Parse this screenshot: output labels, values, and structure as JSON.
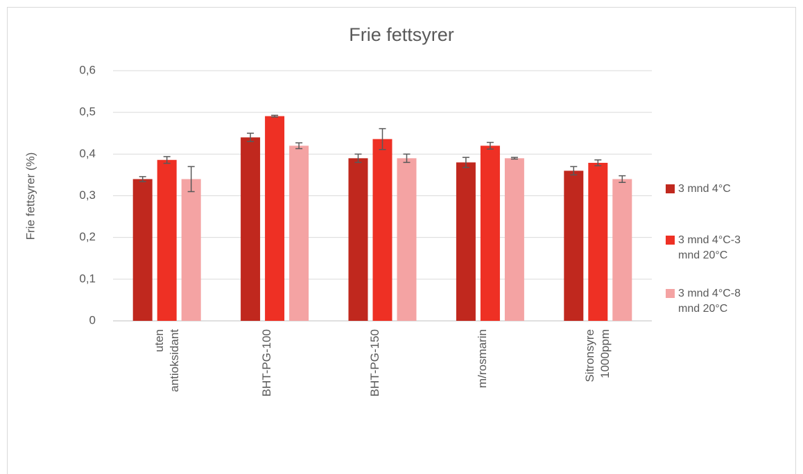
{
  "chart_data": {
    "type": "bar",
    "title": "Frie fettsyrer",
    "y_label": "Frie fettsyrer (%)",
    "categories": [
      "uten antioksidant",
      "BHT-PG-100",
      "BHT-PG-150",
      "m/rosmarin",
      "Sitronsyre 1000ppm"
    ],
    "series": [
      {
        "name": "3 mnd 4°C",
        "color": "#c0281e",
        "values": [
          0.34,
          0.44,
          0.39,
          0.38,
          0.36
        ],
        "errors": [
          0.006,
          0.01,
          0.01,
          0.012,
          0.01
        ]
      },
      {
        "name": "3 mnd 4°C-3 mnd 20°C",
        "color": "#ee3024",
        "values": [
          0.386,
          0.491,
          0.436,
          0.42,
          0.379
        ],
        "errors": [
          0.008,
          0.002,
          0.025,
          0.008,
          0.007
        ]
      },
      {
        "name": "3 mnd 4°C-8 mnd 20°C",
        "color": "#f4a3a3",
        "values": [
          0.34,
          0.42,
          0.39,
          0.39,
          0.34
        ],
        "errors": [
          0.03,
          0.007,
          0.01,
          0.002,
          0.008
        ]
      }
    ],
    "ylim": [
      0,
      0.6
    ],
    "yticks": [
      0,
      {
        "value": 0.1,
        "label": "0,1"
      },
      {
        "value": 0.2,
        "label": "0,2"
      },
      {
        "value": 0.3,
        "label": "0,3"
      },
      {
        "value": 0.4,
        "label": "0,4"
      },
      {
        "value": 0.5,
        "label": "0,5"
      },
      {
        "value": 0.6,
        "label": "0,6"
      }
    ],
    "grid": true,
    "legend": "right"
  }
}
